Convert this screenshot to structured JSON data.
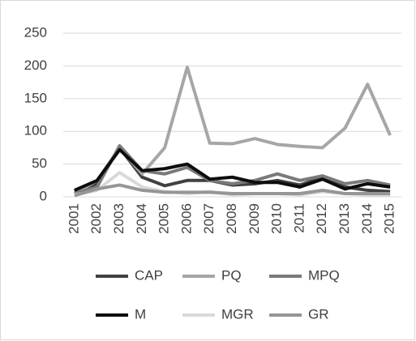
{
  "chart_data": {
    "type": "line",
    "categories": [
      "2001",
      "2002",
      "2003",
      "2004",
      "2005",
      "2006",
      "2007",
      "2008",
      "2009",
      "2010",
      "2011",
      "2012",
      "2013",
      "2014",
      "2015"
    ],
    "series": [
      {
        "name": "CAP",
        "color": "#404040",
        "values": [
          8,
          20,
          75,
          30,
          17,
          25,
          25,
          18,
          20,
          25,
          18,
          30,
          15,
          10,
          8
        ]
      },
      {
        "name": "PQ",
        "color": "#a6a6a6",
        "values": [
          5,
          25,
          75,
          35,
          75,
          198,
          82,
          81,
          89,
          80,
          77,
          75,
          105,
          172,
          94
        ]
      },
      {
        "name": "MPQ",
        "color": "#7a7a7a",
        "values": [
          5,
          15,
          78,
          40,
          35,
          45,
          25,
          20,
          25,
          35,
          25,
          32,
          20,
          25,
          18
        ]
      },
      {
        "name": "M",
        "color": "#0d0d0d",
        "values": [
          10,
          25,
          72,
          40,
          43,
          50,
          27,
          30,
          22,
          22,
          15,
          27,
          12,
          20,
          15
        ]
      },
      {
        "name": "MGR",
        "color": "#d9d9d9",
        "values": [
          3,
          10,
          37,
          15,
          8,
          5,
          8,
          3,
          5,
          5,
          3,
          8,
          5,
          3,
          3
        ]
      },
      {
        "name": "GR",
        "color": "#969696",
        "values": [
          2,
          12,
          18,
          10,
          7,
          7,
          7,
          5,
          5,
          5,
          5,
          10,
          5,
          5,
          5
        ]
      }
    ],
    "ylim": [
      0,
      250
    ],
    "yticks": [
      0,
      50,
      100,
      150,
      200,
      250
    ],
    "grid": true
  }
}
